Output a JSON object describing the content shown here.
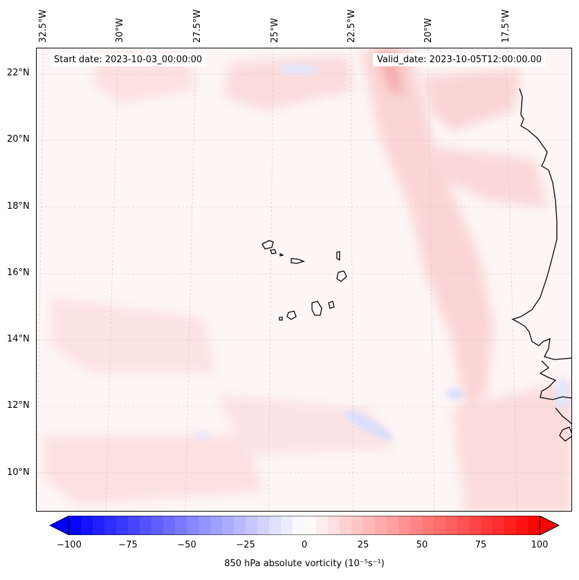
{
  "header": {
    "start_date": "Start date: 2023-10-03_00:00:00",
    "valid_date": "Valid_date: 2023-10-05T12:00:00.00"
  },
  "longitude_labels": [
    "32.5°W",
    "30°W",
    "27.5°W",
    "25°W",
    "22.5°W",
    "20°W",
    "17.5°W"
  ],
  "latitude_labels": [
    "22°N",
    "20°N",
    "18°N",
    "16°N",
    "14°N",
    "12°N",
    "10°N"
  ],
  "map": {
    "region": "Eastern tropical Atlantic, Cape Verde Islands and West African coast",
    "field": "850 hPa absolute vorticity",
    "colormap": "bwr",
    "background_color": "#fdf6f6",
    "positive_color": "#ff0000",
    "negative_color": "#0000ff",
    "gridlines": true
  },
  "colorbar": {
    "min": -100,
    "max": 100,
    "ticks": [
      "−100",
      "−75",
      "−50",
      "−25",
      "0",
      "25",
      "50",
      "75",
      "100"
    ],
    "label": "850 hPa absolute vorticity (10⁻⁵s⁻¹)",
    "extend": "both"
  }
}
